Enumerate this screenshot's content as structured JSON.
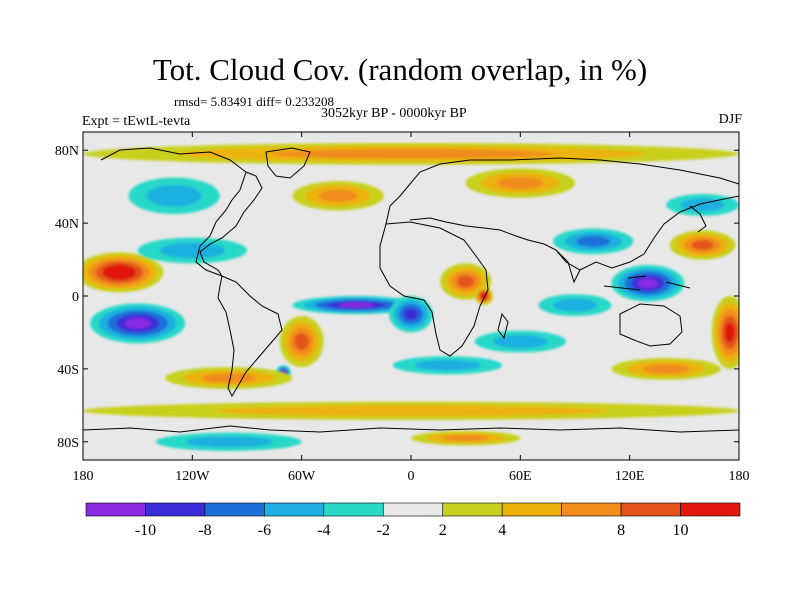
{
  "title": "Tot. Cloud Cov. (random overlap, in %)",
  "stats": "rmsd= 5.83491 diff= 0.233208",
  "experiment": "Expt = tEwtL-tevta",
  "period": "3052kyr BP - 0000kyr BP",
  "season": "DJF",
  "map": {
    "projection": "cylindrical equidistant",
    "lon_range": [
      -180,
      180
    ],
    "lat_range": [
      -90,
      90
    ],
    "x_ticks": [
      {
        "lon": -180,
        "label": "180"
      },
      {
        "lon": -120,
        "label": "120W"
      },
      {
        "lon": -60,
        "label": "60W"
      },
      {
        "lon": 0,
        "label": "0"
      },
      {
        "lon": 60,
        "label": "60E"
      },
      {
        "lon": 120,
        "label": "120E"
      },
      {
        "lon": 180,
        "label": "180"
      }
    ],
    "y_ticks": [
      {
        "lat": 80,
        "label": "80N"
      },
      {
        "lat": 40,
        "label": "40N"
      },
      {
        "lat": 0,
        "label": "0"
      },
      {
        "lat": -40,
        "label": "40S"
      },
      {
        "lat": -80,
        "label": "80S"
      }
    ],
    "neutral_color": "#e8e8e8",
    "anomalies": [
      {
        "lon": -160,
        "lat": 13,
        "rlon": 24,
        "rlat": 11,
        "value": 12
      },
      {
        "lon": -150,
        "lat": -15,
        "rlon": 26,
        "rlat": 11,
        "value": -11
      },
      {
        "lon": -120,
        "lat": 25,
        "rlon": 30,
        "rlat": 7,
        "value": -5
      },
      {
        "lon": -30,
        "lat": -5,
        "rlon": 35,
        "rlat": 5,
        "value": -10
      },
      {
        "lon": 0,
        "lat": -10,
        "rlon": 12,
        "rlat": 10,
        "value": -9
      },
      {
        "lon": 30,
        "lat": 8,
        "rlon": 14,
        "rlat": 10,
        "value": 9
      },
      {
        "lon": 40,
        "lat": 0,
        "rlon": 5,
        "rlat": 5,
        "value": 12
      },
      {
        "lon": 100,
        "lat": 30,
        "rlon": 22,
        "rlat": 7,
        "value": -6
      },
      {
        "lon": 130,
        "lat": 7,
        "rlon": 20,
        "rlat": 10,
        "value": -11
      },
      {
        "lon": 160,
        "lat": 28,
        "rlon": 18,
        "rlat": 8,
        "value": 9
      },
      {
        "lon": 175,
        "lat": -20,
        "rlon": 10,
        "rlat": 20,
        "value": 11
      },
      {
        "lon": -60,
        "lat": -25,
        "rlon": 12,
        "rlat": 14,
        "value": 9
      },
      {
        "lon": -70,
        "lat": -42,
        "rlon": 4,
        "rlat": 4,
        "value": -11
      },
      {
        "lon": 0,
        "lat": -63,
        "rlon": 180,
        "rlat": 5,
        "value": 5
      },
      {
        "lon": 0,
        "lat": 78,
        "rlon": 180,
        "rlat": 6,
        "value": 6
      },
      {
        "lon": -130,
        "lat": 55,
        "rlon": 25,
        "rlat": 10,
        "value": -5
      },
      {
        "lon": -40,
        "lat": 55,
        "rlon": 25,
        "rlat": 8,
        "value": 6
      },
      {
        "lon": 60,
        "lat": 62,
        "rlon": 30,
        "rlat": 8,
        "value": 7
      },
      {
        "lon": 140,
        "lat": -40,
        "rlon": 30,
        "rlat": 6,
        "value": 7
      },
      {
        "lon": 60,
        "lat": -25,
        "rlon": 25,
        "rlat": 6,
        "value": -5
      },
      {
        "lon": -100,
        "lat": -45,
        "rlon": 35,
        "rlat": 6,
        "value": 6
      },
      {
        "lon": 20,
        "lat": -38,
        "rlon": 30,
        "rlat": 5,
        "value": -5
      },
      {
        "lon": 160,
        "lat": 50,
        "rlon": 20,
        "rlat": 6,
        "value": -5
      },
      {
        "lon": 90,
        "lat": -5,
        "rlon": 20,
        "rlat": 6,
        "value": -4
      },
      {
        "lon": -100,
        "lat": -80,
        "rlon": 40,
        "rlat": 5,
        "value": -5
      },
      {
        "lon": 30,
        "lat": -78,
        "rlon": 30,
        "rlat": 4,
        "value": 7
      }
    ]
  },
  "colorbar": {
    "colors": [
      "#8a2be2",
      "#3b2dd8",
      "#1e6fd9",
      "#1eb0e0",
      "#28d8c8",
      "#e8e8e8",
      "#c8d01e",
      "#ecb20c",
      "#f08c1a",
      "#e4541a",
      "#e0180e"
    ],
    "labels": [
      "-10",
      "-8",
      "-6",
      "-4",
      "-2",
      "2",
      "4",
      "8",
      "10"
    ]
  }
}
